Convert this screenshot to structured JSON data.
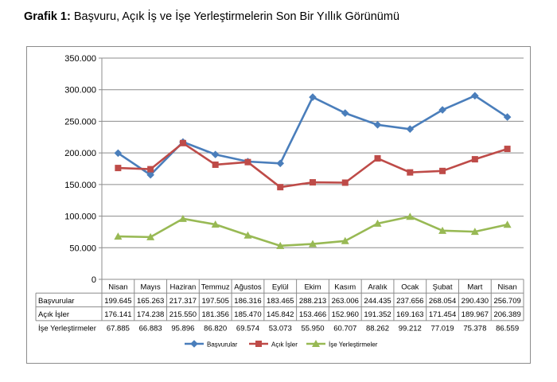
{
  "title": {
    "prefix": "Grafik 1:",
    "text": "Başvuru, Açık İş ve İşe Yerleştirmelerin Son Bir Yıllık Görünümü"
  },
  "colors": {
    "basvurular": "#4a7ebb",
    "acik_isler": "#be4b48",
    "ise_yerlestirmeler": "#98b954",
    "grid": "#8c8c8c"
  },
  "chart_data": {
    "type": "line",
    "categories": [
      "Nisan",
      "Mayıs",
      "Haziran",
      "Temmuz",
      "Ağustos",
      "Eylül",
      "Ekim",
      "Kasım",
      "Aralık",
      "Ocak",
      "Şubat",
      "Mart",
      "Nisan"
    ],
    "ylim": [
      0,
      350000
    ],
    "ytick_labels": [
      "0",
      "50.000",
      "100.000",
      "150.000",
      "200.000",
      "250.000",
      "300.000",
      "350.000"
    ],
    "grid": true,
    "legend_position": "bottom",
    "series": [
      {
        "name": "Başvurular",
        "color": "#4a7ebb",
        "marker": "diamond",
        "values": [
          199645,
          165263,
          217317,
          197505,
          186316,
          183465,
          288213,
          263006,
          244435,
          237656,
          268054,
          290430,
          256709
        ],
        "labels": [
          "199.645",
          "165.263",
          "217.317",
          "197.505",
          "186.316",
          "183.465",
          "288.213",
          "263.006",
          "244.435",
          "237.656",
          "268.054",
          "290.430",
          "256.709"
        ]
      },
      {
        "name": "Açık İşler",
        "color": "#be4b48",
        "marker": "square",
        "values": [
          176141,
          174238,
          215550,
          181356,
          185470,
          145842,
          153466,
          152960,
          191352,
          169163,
          171454,
          189967,
          206389
        ],
        "labels": [
          "176.141",
          "174.238",
          "215.550",
          "181.356",
          "185.470",
          "145.842",
          "153.466",
          "152.960",
          "191.352",
          "169.163",
          "171.454",
          "189.967",
          "206.389"
        ]
      },
      {
        "name": "İşe Yerleştirmeler",
        "color": "#98b954",
        "marker": "triangle",
        "values": [
          67885,
          66883,
          95896,
          86820,
          69574,
          53073,
          55950,
          60707,
          88262,
          99212,
          77019,
          75378,
          86559
        ],
        "labels": [
          "67.885",
          "66.883",
          "95.896",
          "86.820",
          "69.574",
          "53.073",
          "55.950",
          "60.707",
          "88.262",
          "99.212",
          "77.019",
          "75.378",
          "86.559"
        ]
      }
    ]
  }
}
